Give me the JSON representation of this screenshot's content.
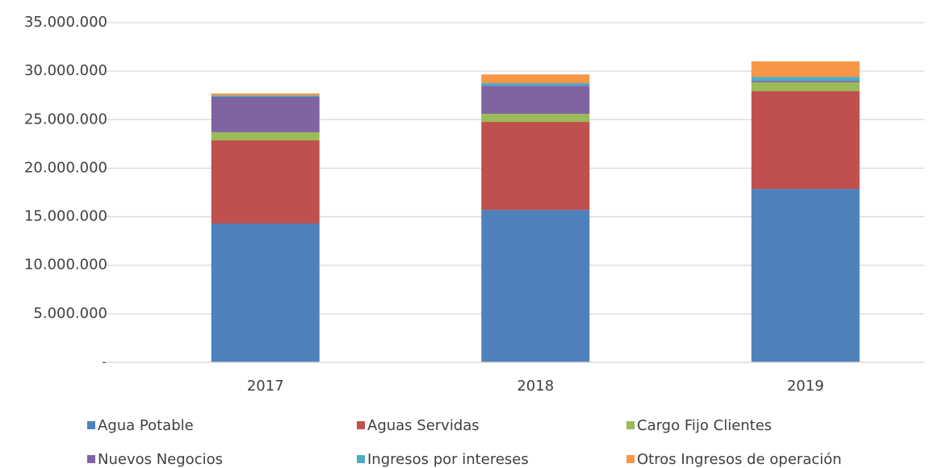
{
  "chart_data": {
    "type": "stacked_bar",
    "categories": [
      "2017",
      "2018",
      "2019"
    ],
    "series": [
      {
        "name": "Agua Potable",
        "color": "#4f81bd",
        "values": [
          14300000,
          15700000,
          17870000
        ]
      },
      {
        "name": "Aguas Servidas",
        "color": "#c0504d",
        "values": [
          8560000,
          9070000,
          10060000
        ]
      },
      {
        "name": "Cargo Fijo Clientes",
        "color": "#9bbb59",
        "values": [
          840000,
          830000,
          920000
        ]
      },
      {
        "name": "Nuevos Negocios",
        "color": "#8064a2",
        "values": [
          3650000,
          2900000,
          150000
        ]
      },
      {
        "name": "Ingresos por intereses",
        "color": "#4bacc6",
        "values": [
          150000,
          260000,
          400000
        ]
      },
      {
        "name": "Otros Ingresos de operación",
        "color": "#f79646",
        "values": [
          200000,
          900000,
          1600000
        ]
      }
    ],
    "ylim": [
      0,
      35000000
    ],
    "yticks": [
      {
        "value": 0,
        "label": "-"
      },
      {
        "value": 5000000,
        "label": "5.000.000"
      },
      {
        "value": 10000000,
        "label": "10.000.000"
      },
      {
        "value": 15000000,
        "label": "15.000.000"
      },
      {
        "value": 20000000,
        "label": "20.000.000"
      },
      {
        "value": 25000000,
        "label": "25.000.000"
      },
      {
        "value": 30000000,
        "label": "30.000.000"
      },
      {
        "value": 35000000,
        "label": "35.000.000"
      }
    ],
    "grid": true
  }
}
